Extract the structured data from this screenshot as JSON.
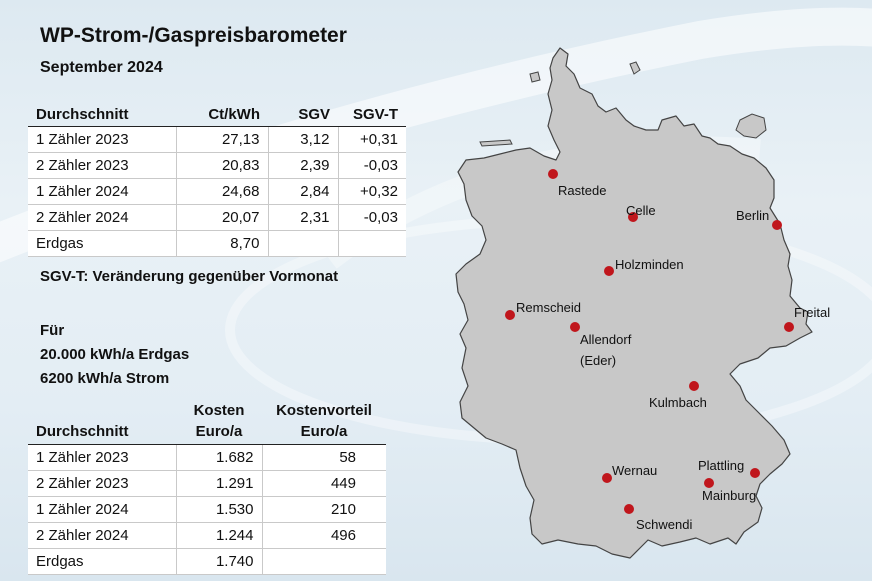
{
  "title": "WP-Strom-/Gaspreisbarometer",
  "subtitle": "September 2024",
  "price_table": {
    "headers": [
      "Durchschnitt",
      "Ct/kWh",
      "SGV",
      "SGV-T"
    ],
    "rows": [
      [
        "1 Zähler 2023",
        "27,13",
        "3,12",
        "+0,31"
      ],
      [
        "2 Zähler 2023",
        "20,83",
        "2,39",
        "-0,03"
      ],
      [
        "1 Zähler 2024",
        "24,68",
        "2,84",
        "+0,32"
      ],
      [
        "2 Zähler 2024",
        "20,07",
        "2,31",
        "-0,03"
      ],
      [
        "Erdgas",
        "8,70",
        "",
        ""
      ]
    ]
  },
  "note": "SGV-T: Veränderung gegenüber Vormonat",
  "for_block": {
    "line1": "Für",
    "line2": "20.000 kWh/a Erdgas",
    "line3": "6200 kWh/a Strom"
  },
  "cost_table": {
    "headers": [
      {
        "line1": "",
        "line2": "Durchschnitt"
      },
      {
        "line1": "Kosten",
        "line2": "Euro/a"
      },
      {
        "line1": "Kostenvorteil",
        "line2": "Euro/a"
      }
    ],
    "rows": [
      [
        "1 Zähler 2023",
        "1.682",
        "58"
      ],
      [
        "2 Zähler 2023",
        "1.291",
        "449"
      ],
      [
        "1 Zähler 2024",
        "1.530",
        "210"
      ],
      [
        "2 Zähler 2024",
        "1.244",
        "496"
      ],
      [
        "Erdgas",
        "1.740",
        ""
      ]
    ]
  },
  "map": {
    "fill_color": "#c8c8c8",
    "marker_color": "#c0161c",
    "cities": [
      {
        "name": "Rastede"
      },
      {
        "name": "Celle"
      },
      {
        "name": "Berlin"
      },
      {
        "name": "Holzminden"
      },
      {
        "name": "Remscheid"
      },
      {
        "name": "Allendorf"
      },
      {
        "name": "(Eder)"
      },
      {
        "name": "Freital"
      },
      {
        "name": "Kulmbach"
      },
      {
        "name": "Wernau"
      },
      {
        "name": "Plattling"
      },
      {
        "name": "Mainburg"
      },
      {
        "name": "Schwendi"
      }
    ]
  }
}
